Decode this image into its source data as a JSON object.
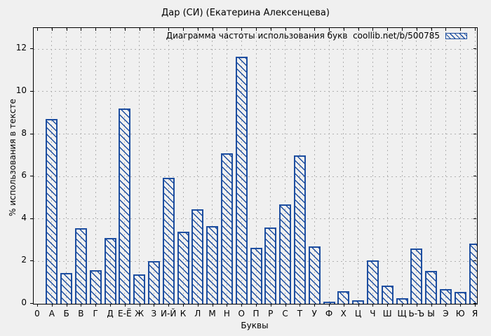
{
  "chart_data": {
    "type": "bar",
    "title": "Дар (СИ) (Екатерина Алексенцева)",
    "legend_label": "Диаграмма частоты использования букв  coollib.net/b/500785",
    "legend_position": "top-right inside plot",
    "xlabel": "Буквы",
    "ylabel": "% использования в тексте",
    "origin_tick_label": "0",
    "categories": [
      "А",
      "Б",
      "В",
      "Г",
      "Д",
      "Е-Ё",
      "Ж",
      "З",
      "И-Й",
      "К",
      "Л",
      "М",
      "Н",
      "О",
      "П",
      "Р",
      "С",
      "Т",
      "У",
      "Ф",
      "Х",
      "Ц",
      "Ч",
      "Ш",
      "Щ",
      "Ь-Ъ",
      "Ы",
      "Э",
      "Ю",
      "Я"
    ],
    "values": [
      8.7,
      1.45,
      3.55,
      1.6,
      3.1,
      9.2,
      1.4,
      2.0,
      5.95,
      3.4,
      4.45,
      3.65,
      7.1,
      11.65,
      2.65,
      3.6,
      4.7,
      7.0,
      2.7,
      0.1,
      0.6,
      0.15,
      2.05,
      0.85,
      0.25,
      2.6,
      1.55,
      0.7,
      0.55,
      2.85
    ],
    "yticks": [
      0,
      2,
      4,
      6,
      8,
      10,
      12
    ],
    "ylim": [
      0,
      13
    ],
    "grid": true,
    "hatch": "backslash-diagonal",
    "colors": {
      "bar": "#1d4ea0",
      "grid": "#b0b0b0",
      "background": "#f0f0f0",
      "axis": "#000000"
    }
  }
}
